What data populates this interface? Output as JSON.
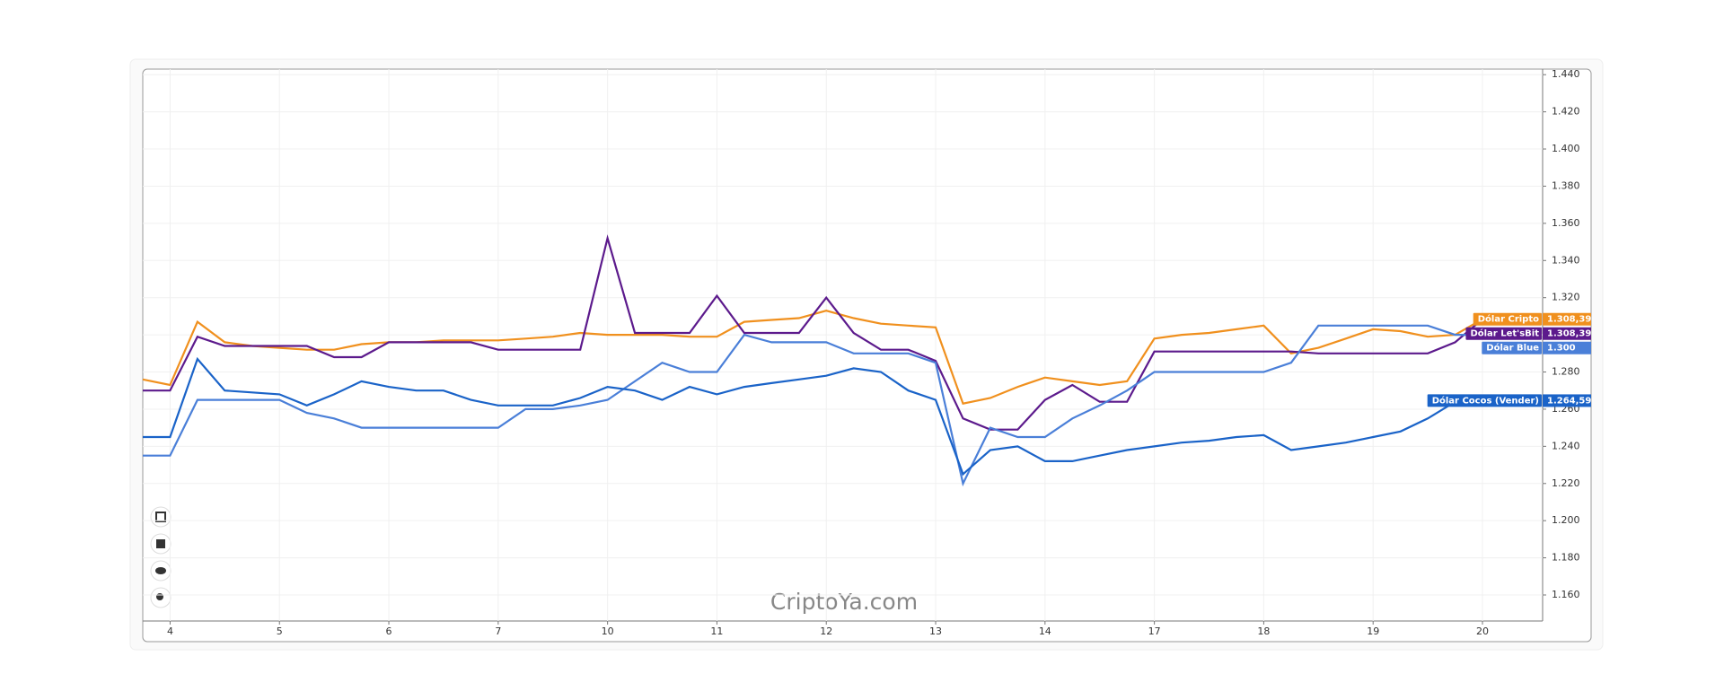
{
  "chart_data": {
    "type": "line",
    "watermark": "CriptoYa.com",
    "x": [
      -0.25,
      0,
      0.25,
      0.5,
      0.75,
      1,
      1.25,
      1.5,
      1.75,
      2,
      2.25,
      2.5,
      2.75,
      3,
      3.25,
      3.5,
      3.75,
      4,
      4.25,
      4.5,
      4.75,
      5,
      5.25,
      5.5,
      5.75,
      6,
      6.25,
      6.5,
      6.75,
      7,
      7.25,
      7.5,
      7.75,
      8,
      8.25,
      8.5,
      8.75,
      9,
      9.25,
      9.5,
      9.75,
      10,
      10.25,
      10.5,
      10.75,
      11,
      11.25,
      11.5,
      11.75,
      12
    ],
    "xlim": [
      -0.25,
      12.55
    ],
    "xticks": [
      {
        "value": 0,
        "label": "4"
      },
      {
        "value": 1,
        "label": "5"
      },
      {
        "value": 2,
        "label": "6"
      },
      {
        "value": 3,
        "label": "7"
      },
      {
        "value": 4,
        "label": "10"
      },
      {
        "value": 5,
        "label": "11"
      },
      {
        "value": 6,
        "label": "12"
      },
      {
        "value": 7,
        "label": "13"
      },
      {
        "value": 8,
        "label": "14"
      },
      {
        "value": 9,
        "label": "17"
      },
      {
        "value": 10,
        "label": "18"
      },
      {
        "value": 11,
        "label": "19"
      },
      {
        "value": 12,
        "label": "20"
      }
    ],
    "ylim": [
      1146,
      1443
    ],
    "yticks": [
      {
        "value": 1160,
        "label": "1.160"
      },
      {
        "value": 1180,
        "label": "1.180"
      },
      {
        "value": 1200,
        "label": "1.200"
      },
      {
        "value": 1220,
        "label": "1.220"
      },
      {
        "value": 1240,
        "label": "1.240"
      },
      {
        "value": 1260,
        "label": "1.260"
      },
      {
        "value": 1280,
        "label": "1.280"
      },
      {
        "value": 1300,
        "label": "1.300"
      },
      {
        "value": 1320,
        "label": "1.320"
      },
      {
        "value": 1340,
        "label": "1.340"
      },
      {
        "value": 1360,
        "label": "1.360"
      },
      {
        "value": 1380,
        "label": "1.380"
      },
      {
        "value": 1400,
        "label": "1.400"
      },
      {
        "value": 1420,
        "label": "1.420"
      },
      {
        "value": 1440,
        "label": "1.440"
      }
    ],
    "grid": true,
    "series": [
      {
        "name": "Dólar Cripto",
        "color": "#f0901e",
        "last_label": "1.308,39",
        "values": [
          1276,
          1273,
          1307,
          1296,
          1294,
          1293,
          1292,
          1292,
          1295,
          1296,
          1296,
          1297,
          1297,
          1297,
          1298,
          1299,
          1301,
          1300,
          1300,
          1300,
          1299,
          1299,
          1307,
          1308,
          1309,
          1313,
          1309,
          1306,
          1305,
          1304,
          1263,
          1266,
          1272,
          1277,
          1275,
          1273,
          1275,
          1298,
          1300,
          1301,
          1303,
          1305,
          1290,
          1293,
          1298,
          1303,
          1302,
          1299,
          1300,
          1308.39
        ]
      },
      {
        "name": "Dólar Let'sBit",
        "color": "#5c1a8c",
        "last_label": "1.308,39",
        "values": [
          1270,
          1270,
          1299,
          1294,
          1294,
          1294,
          1294,
          1288,
          1288,
          1296,
          1296,
          1296,
          1296,
          1292,
          1292,
          1292,
          1292,
          1352,
          1301,
          1301,
          1301,
          1321,
          1301,
          1301,
          1301,
          1320,
          1301,
          1292,
          1292,
          1286,
          1255,
          1249,
          1249,
          1265,
          1273,
          1264,
          1264,
          1291,
          1291,
          1291,
          1291,
          1291,
          1291,
          1290,
          1290,
          1290,
          1290,
          1290,
          1296,
          1308.39
        ]
      },
      {
        "name": "Dólar Blue",
        "color": "#4a7fd8",
        "last_label": "1.300",
        "values": [
          1235,
          1235,
          1265,
          1265,
          1265,
          1265,
          1258,
          1255,
          1250,
          1250,
          1250,
          1250,
          1250,
          1250,
          1260,
          1260,
          1262,
          1265,
          1275,
          1285,
          1280,
          1280,
          1300,
          1296,
          1296,
          1296,
          1290,
          1290,
          1290,
          1285,
          1220,
          1250,
          1245,
          1245,
          1255,
          1262,
          1270,
          1280,
          1280,
          1280,
          1280,
          1280,
          1285,
          1305,
          1305,
          1305,
          1305,
          1305,
          1300,
          1300
        ]
      },
      {
        "name": "Dólar Cocos (Vender)",
        "color": "#1a63c8",
        "last_label": "1.264,59",
        "values": [
          1245,
          1245,
          1287,
          1270,
          1269,
          1268,
          1262,
          1268,
          1275,
          1272,
          1270,
          1270,
          1265,
          1262,
          1262,
          1262,
          1266,
          1272,
          1270,
          1265,
          1272,
          1268,
          1272,
          1274,
          1276,
          1278,
          1282,
          1280,
          1270,
          1265,
          1225,
          1238,
          1240,
          1232,
          1232,
          1235,
          1238,
          1240,
          1242,
          1243,
          1245,
          1246,
          1238,
          1240,
          1242,
          1245,
          1248,
          1255,
          1264,
          1264.59
        ]
      }
    ]
  }
}
